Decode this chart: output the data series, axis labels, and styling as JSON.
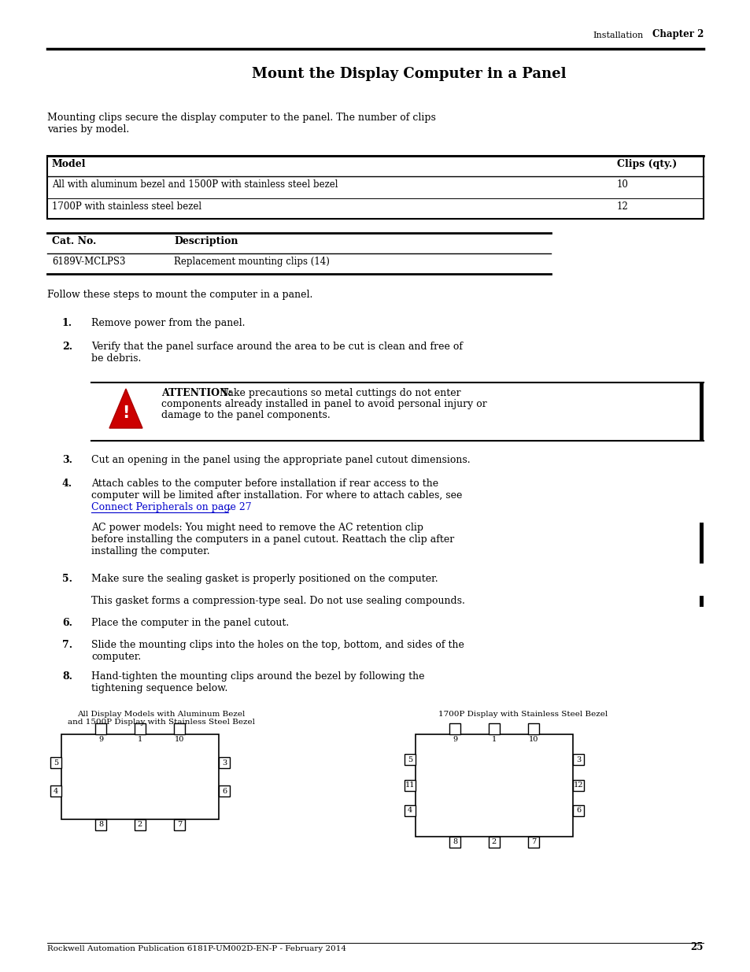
{
  "title": "Mount the Display Computer in a Panel",
  "header_label": "Installation",
  "header_chapter": "Chapter 2",
  "bg_color": "#ffffff",
  "intro_text": "Mounting clips secure the display computer to the panel. The number of clips\nvaries by model.",
  "table1_headers": [
    "Model",
    "Clips (qty.)"
  ],
  "table1_rows": [
    [
      "All with aluminum bezel and 1500P with stainless steel bezel",
      "10"
    ],
    [
      "1700P with stainless steel bezel",
      "12"
    ]
  ],
  "table2_headers": [
    "Cat. No.",
    "Description"
  ],
  "table2_rows": [
    [
      "6189V-MCLPS3",
      "Replacement mounting clips (14)"
    ]
  ],
  "follow_text": "Follow these steps to mount the computer in a panel.",
  "footer_text": "Rockwell Automation Publication 6181P-UM002D-EN-P - February 2014",
  "footer_page": "25"
}
